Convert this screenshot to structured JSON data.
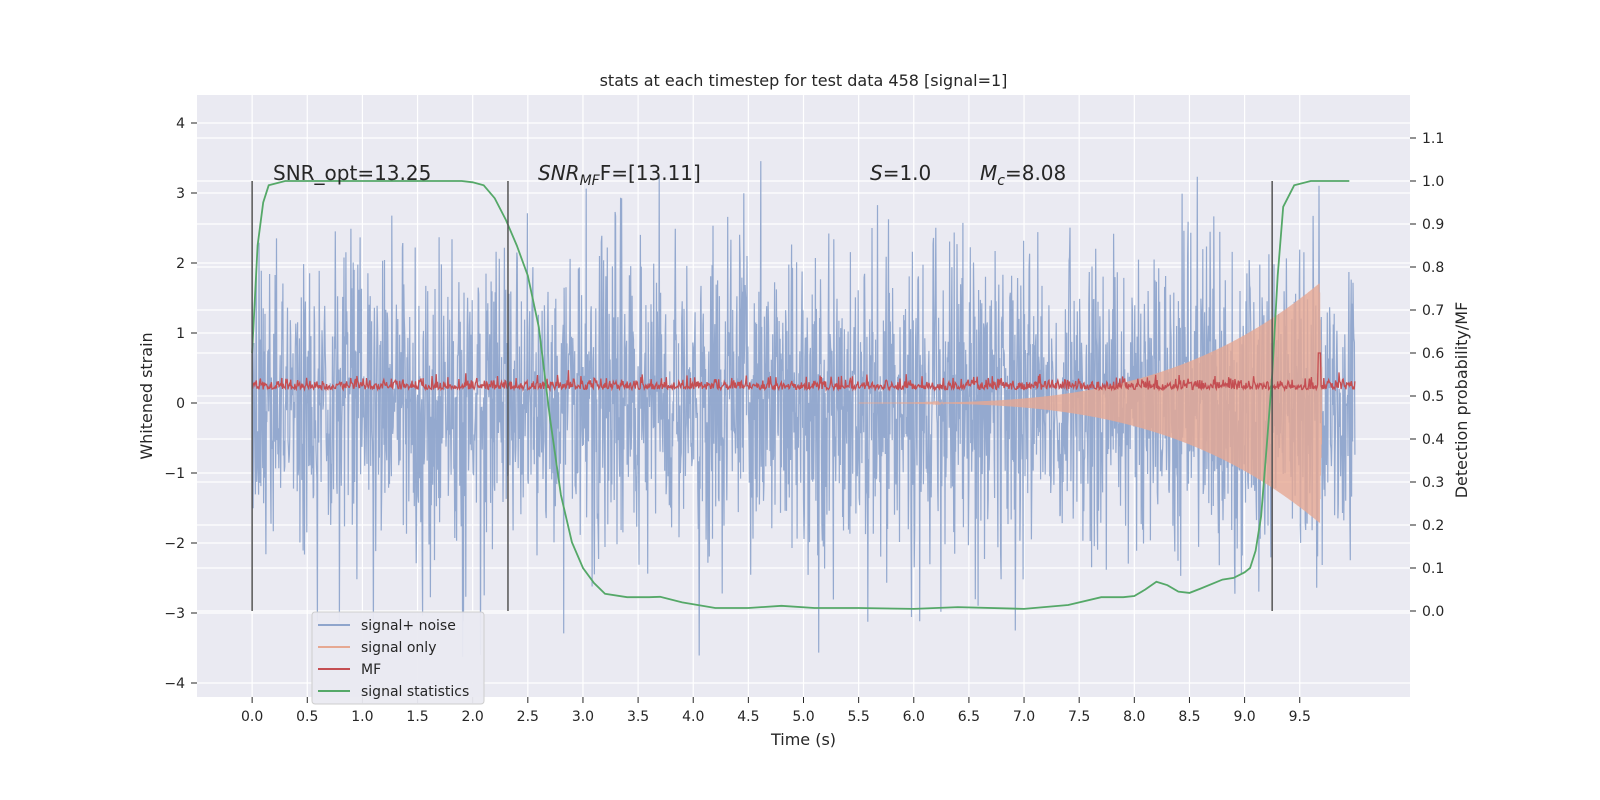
{
  "chart_data": {
    "type": "line",
    "title": "stats at each timestep for test data 458 [signal=1]",
    "xlabel": "Time (s)",
    "ylabel_left": "Whitened strain",
    "ylabel_right": "Detection probability/MF",
    "xlim": [
      -0.5,
      10.5
    ],
    "ylim_left": [
      -4.2,
      4.4
    ],
    "ylim_right": [
      -0.2,
      1.2
    ],
    "x_ticks": [
      "0.0",
      "0.5",
      "1.0",
      "1.5",
      "2.0",
      "2.5",
      "3.0",
      "3.5",
      "4.0",
      "4.5",
      "5.0",
      "5.5",
      "6.0",
      "6.5",
      "7.0",
      "7.5",
      "8.0",
      "8.5",
      "9.0",
      "9.5"
    ],
    "y_left_ticks": [
      "4",
      "3",
      "2",
      "1",
      "0",
      "−1",
      "−2",
      "−3",
      "−4"
    ],
    "y_right_ticks": [
      "1.1",
      "1.0",
      "0.9",
      "0.8",
      "0.7",
      "0.6",
      "0.5",
      "0.4",
      "0.3",
      "0.2",
      "0.1",
      "0.0"
    ],
    "grid": true,
    "legend_position": "bottom-left",
    "annotations": {
      "snr_opt": "SNR_opt=13.25",
      "snr_mf_base": "SNR",
      "snr_mf_sub": "MF",
      "snr_mf_rest": "F=[13.11]",
      "s_base": "S",
      "s_rest": "=1.0",
      "mc_base": "M",
      "mc_sub": "c",
      "mc_rest": "=8.08"
    },
    "vertical_markers_x": [
      0.0,
      2.32,
      9.25
    ],
    "series": [
      {
        "name": "signal+ noise",
        "color": "#8fa5cc",
        "axis": "left",
        "kind": "noise",
        "x_start": 0.0,
        "x_end": 10.0,
        "sigma": 1.0,
        "typical_range": [
          -3.8,
          4.0
        ]
      },
      {
        "name": "signal only",
        "color": "#e6a892",
        "axis": "left",
        "kind": "chirp",
        "x_start": 5.5,
        "x_end": 9.7,
        "amp_start": 0.0,
        "amp_end": 1.9,
        "merger_x": 9.68
      },
      {
        "name": "MF",
        "color": "#c44e52",
        "axis": "right",
        "kind": "noisy-baseline",
        "baseline": 0.515,
        "spike_x": 9.68,
        "spike_value": 0.6
      },
      {
        "name": "signal statistics",
        "color": "#55a868",
        "axis": "right",
        "x": [
          0.0,
          0.05,
          0.1,
          0.15,
          0.3,
          0.6,
          1.0,
          1.5,
          1.9,
          2.0,
          2.1,
          2.2,
          2.3,
          2.4,
          2.5,
          2.6,
          2.7,
          2.8,
          2.9,
          3.0,
          3.1,
          3.2,
          3.4,
          3.6,
          3.7,
          3.9,
          4.2,
          4.5,
          4.8,
          5.1,
          5.5,
          6.0,
          6.4,
          7.0,
          7.4,
          7.7,
          7.9,
          8.0,
          8.1,
          8.2,
          8.3,
          8.4,
          8.5,
          8.6,
          8.8,
          8.9,
          9.0,
          9.05,
          9.1,
          9.15,
          9.2,
          9.25,
          9.3,
          9.35,
          9.45,
          9.6,
          9.8,
          9.95
        ],
        "y": [
          0.6,
          0.85,
          0.95,
          0.99,
          1.0,
          1.0,
          1.0,
          1.0,
          1.0,
          0.997,
          0.99,
          0.96,
          0.91,
          0.85,
          0.78,
          0.66,
          0.45,
          0.27,
          0.16,
          0.1,
          0.065,
          0.04,
          0.032,
          0.032,
          0.033,
          0.02,
          0.007,
          0.007,
          0.012,
          0.007,
          0.007,
          0.005,
          0.009,
          0.005,
          0.014,
          0.032,
          0.032,
          0.035,
          0.05,
          0.068,
          0.06,
          0.045,
          0.042,
          0.052,
          0.073,
          0.077,
          0.09,
          0.1,
          0.14,
          0.22,
          0.38,
          0.55,
          0.78,
          0.94,
          0.99,
          1.0,
          1.0,
          1.0
        ]
      }
    ]
  }
}
